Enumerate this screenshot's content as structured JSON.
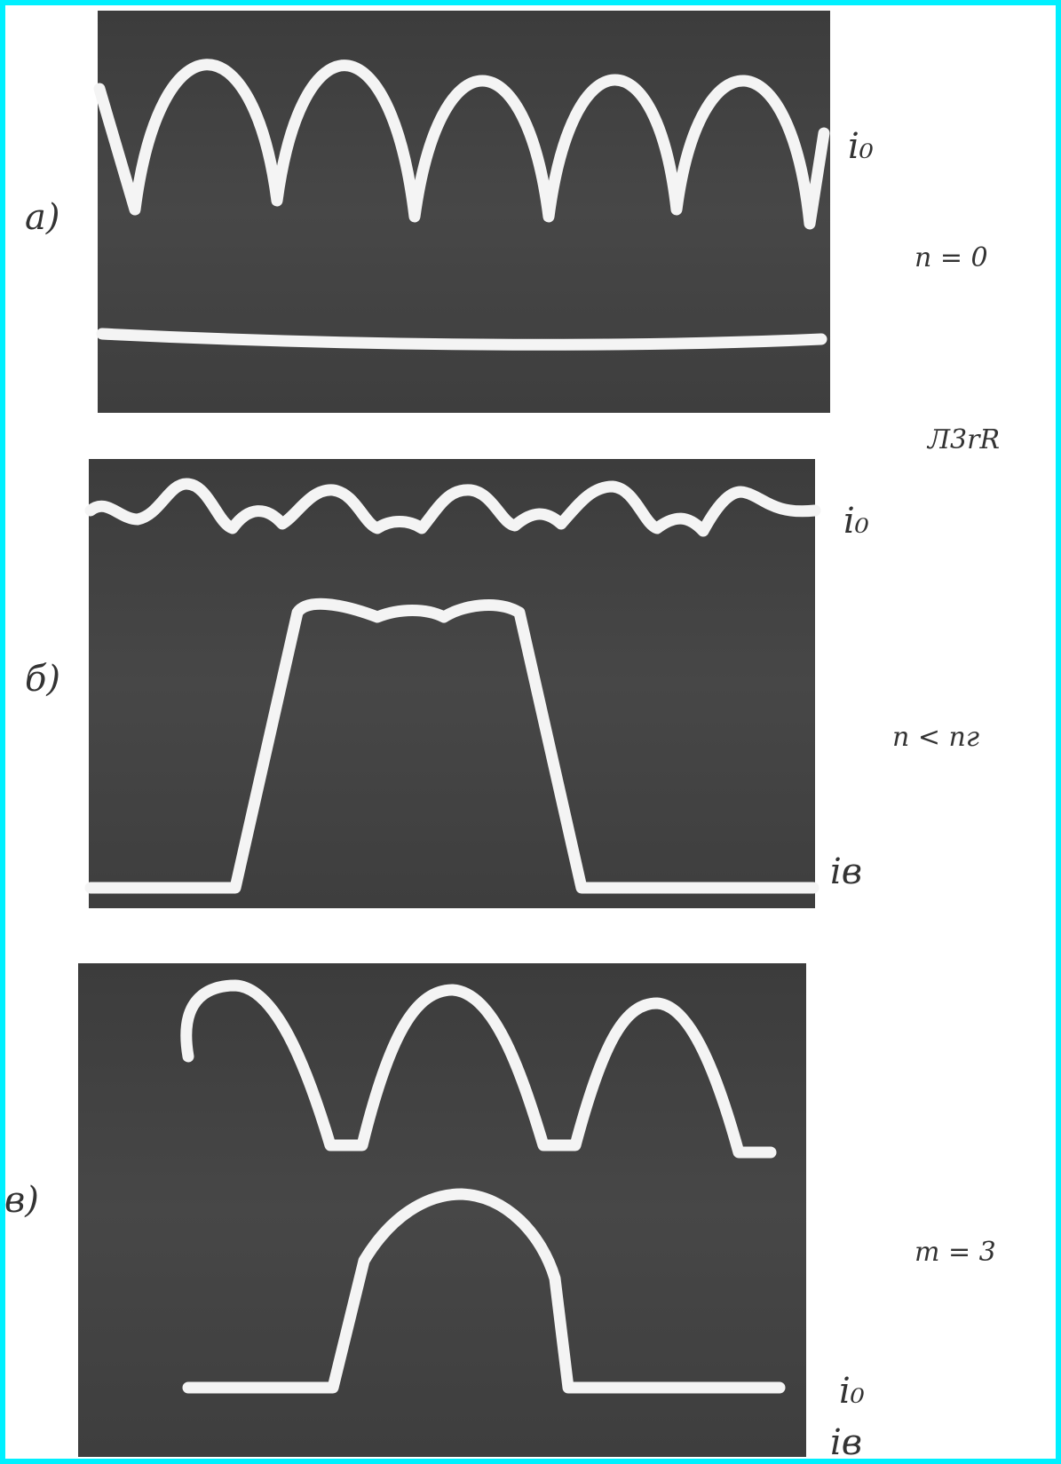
{
  "panels": [
    {
      "label": "a)",
      "signals": [
        "i₀"
      ],
      "condition": "n = 0",
      "note": "Л3rR"
    },
    {
      "label": "б)",
      "signals": [
        "i₀",
        "iв"
      ],
      "condition": "n < nг"
    },
    {
      "label": "в)",
      "signals": [
        "i₀",
        "iв"
      ],
      "condition": "m = 3"
    }
  ]
}
